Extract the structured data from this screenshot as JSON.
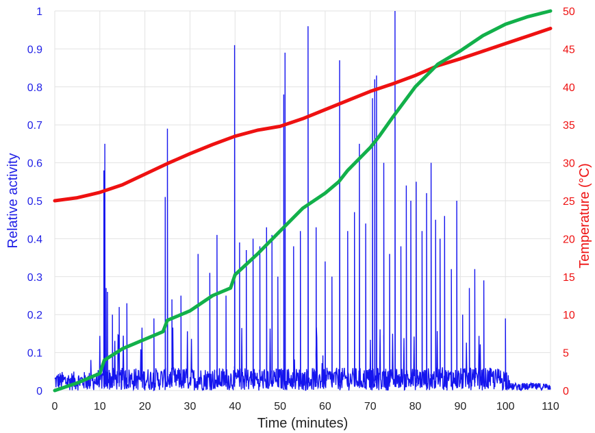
{
  "chart_data": {
    "type": "line",
    "title": "",
    "xlabel": "Time (minutes)",
    "ylabel_left": "Relative activity",
    "ylabel_right": "Temperature (°C)",
    "xlim": [
      0,
      110
    ],
    "ylim_left": [
      0,
      1
    ],
    "ylim_right": [
      0,
      50
    ],
    "x_ticks": [
      "0",
      "10",
      "20",
      "30",
      "40",
      "50",
      "60",
      "70",
      "80",
      "90",
      "100",
      "110"
    ],
    "y_left_ticks": [
      "0",
      "0.1",
      "0.2",
      "0.3",
      "0.4",
      "0.5",
      "0.6",
      "0.7",
      "0.8",
      "0.9",
      "1"
    ],
    "y_right_ticks": [
      "0",
      "5",
      "10",
      "15",
      "20",
      "25",
      "30",
      "35",
      "40",
      "45",
      "50"
    ],
    "grid": true,
    "colors": {
      "activity": "#1515ee",
      "temperature": "#ee1111",
      "cumulative": "#12b04a",
      "left_axis": "#1f1fe6",
      "right_axis": "#ee1111"
    },
    "series": [
      {
        "key": "activity",
        "axis": "left",
        "baseline_range": [
          0.0,
          0.05
        ],
        "spikes": [
          {
            "x": 10.9,
            "y": 0.58
          },
          {
            "x": 11.1,
            "y": 0.65
          },
          {
            "x": 11.4,
            "y": 0.27
          },
          {
            "x": 11.7,
            "y": 0.26
          },
          {
            "x": 12.8,
            "y": 0.2
          },
          {
            "x": 14.3,
            "y": 0.22
          },
          {
            "x": 16.0,
            "y": 0.23
          },
          {
            "x": 22.0,
            "y": 0.19
          },
          {
            "x": 24.5,
            "y": 0.51
          },
          {
            "x": 25.0,
            "y": 0.69
          },
          {
            "x": 26.0,
            "y": 0.24
          },
          {
            "x": 28.0,
            "y": 0.25
          },
          {
            "x": 31.8,
            "y": 0.36
          },
          {
            "x": 34.4,
            "y": 0.31
          },
          {
            "x": 36.0,
            "y": 0.41
          },
          {
            "x": 38.0,
            "y": 0.25
          },
          {
            "x": 39.9,
            "y": 0.91
          },
          {
            "x": 41.0,
            "y": 0.39
          },
          {
            "x": 42.5,
            "y": 0.37
          },
          {
            "x": 44.0,
            "y": 0.4
          },
          {
            "x": 45.5,
            "y": 0.38
          },
          {
            "x": 47.0,
            "y": 0.43
          },
          {
            "x": 48.2,
            "y": 0.41
          },
          {
            "x": 49.5,
            "y": 0.3
          },
          {
            "x": 50.8,
            "y": 0.78
          },
          {
            "x": 51.1,
            "y": 0.89
          },
          {
            "x": 53.0,
            "y": 0.38
          },
          {
            "x": 54.5,
            "y": 0.42
          },
          {
            "x": 56.2,
            "y": 0.96
          },
          {
            "x": 58.0,
            "y": 0.43
          },
          {
            "x": 60.0,
            "y": 0.34
          },
          {
            "x": 61.5,
            "y": 0.3
          },
          {
            "x": 63.2,
            "y": 0.87
          },
          {
            "x": 65.0,
            "y": 0.42
          },
          {
            "x": 66.5,
            "y": 0.47
          },
          {
            "x": 67.6,
            "y": 0.65
          },
          {
            "x": 69.0,
            "y": 0.44
          },
          {
            "x": 70.5,
            "y": 0.77
          },
          {
            "x": 71.0,
            "y": 0.82
          },
          {
            "x": 71.4,
            "y": 0.83
          },
          {
            "x": 73.0,
            "y": 0.6
          },
          {
            "x": 74.3,
            "y": 0.36
          },
          {
            "x": 75.5,
            "y": 1.0
          },
          {
            "x": 76.8,
            "y": 0.38
          },
          {
            "x": 78.0,
            "y": 0.54
          },
          {
            "x": 79.0,
            "y": 0.5
          },
          {
            "x": 80.2,
            "y": 0.55
          },
          {
            "x": 81.5,
            "y": 0.42
          },
          {
            "x": 82.5,
            "y": 0.52
          },
          {
            "x": 83.5,
            "y": 0.6
          },
          {
            "x": 84.5,
            "y": 0.45
          },
          {
            "x": 85.5,
            "y": 0.4
          },
          {
            "x": 86.5,
            "y": 0.46
          },
          {
            "x": 88.0,
            "y": 0.32
          },
          {
            "x": 89.2,
            "y": 0.5
          },
          {
            "x": 90.5,
            "y": 0.2
          },
          {
            "x": 92.0,
            "y": 0.27
          },
          {
            "x": 93.2,
            "y": 0.32
          },
          {
            "x": 95.2,
            "y": 0.29
          },
          {
            "x": 100.0,
            "y": 0.19
          }
        ]
      },
      {
        "key": "temperature",
        "axis": "right",
        "x": [
          0,
          5,
          10,
          15,
          20,
          25,
          30,
          35,
          40,
          45,
          50,
          55,
          60,
          65,
          70,
          75,
          80,
          85,
          90,
          95,
          100,
          105,
          110
        ],
        "y": [
          25.0,
          25.4,
          26.1,
          27.1,
          28.5,
          29.9,
          31.2,
          32.4,
          33.5,
          34.3,
          34.8,
          35.8,
          37.0,
          38.2,
          39.4,
          40.4,
          41.5,
          42.8,
          43.7,
          44.7,
          45.7,
          46.7,
          47.7
        ]
      },
      {
        "key": "cumulative",
        "axis": "left",
        "x": [
          0,
          5,
          10,
          11,
          15,
          20,
          24,
          25,
          30,
          35,
          39,
          40,
          45,
          50,
          55,
          60,
          63,
          65,
          70,
          72,
          75,
          80,
          85,
          90,
          95,
          100,
          105,
          110
        ],
        "y": [
          0.0,
          0.02,
          0.045,
          0.08,
          0.11,
          0.135,
          0.155,
          0.185,
          0.21,
          0.25,
          0.27,
          0.305,
          0.36,
          0.42,
          0.48,
          0.52,
          0.55,
          0.58,
          0.64,
          0.67,
          0.72,
          0.8,
          0.86,
          0.895,
          0.935,
          0.965,
          0.985,
          1.0
        ]
      }
    ]
  }
}
